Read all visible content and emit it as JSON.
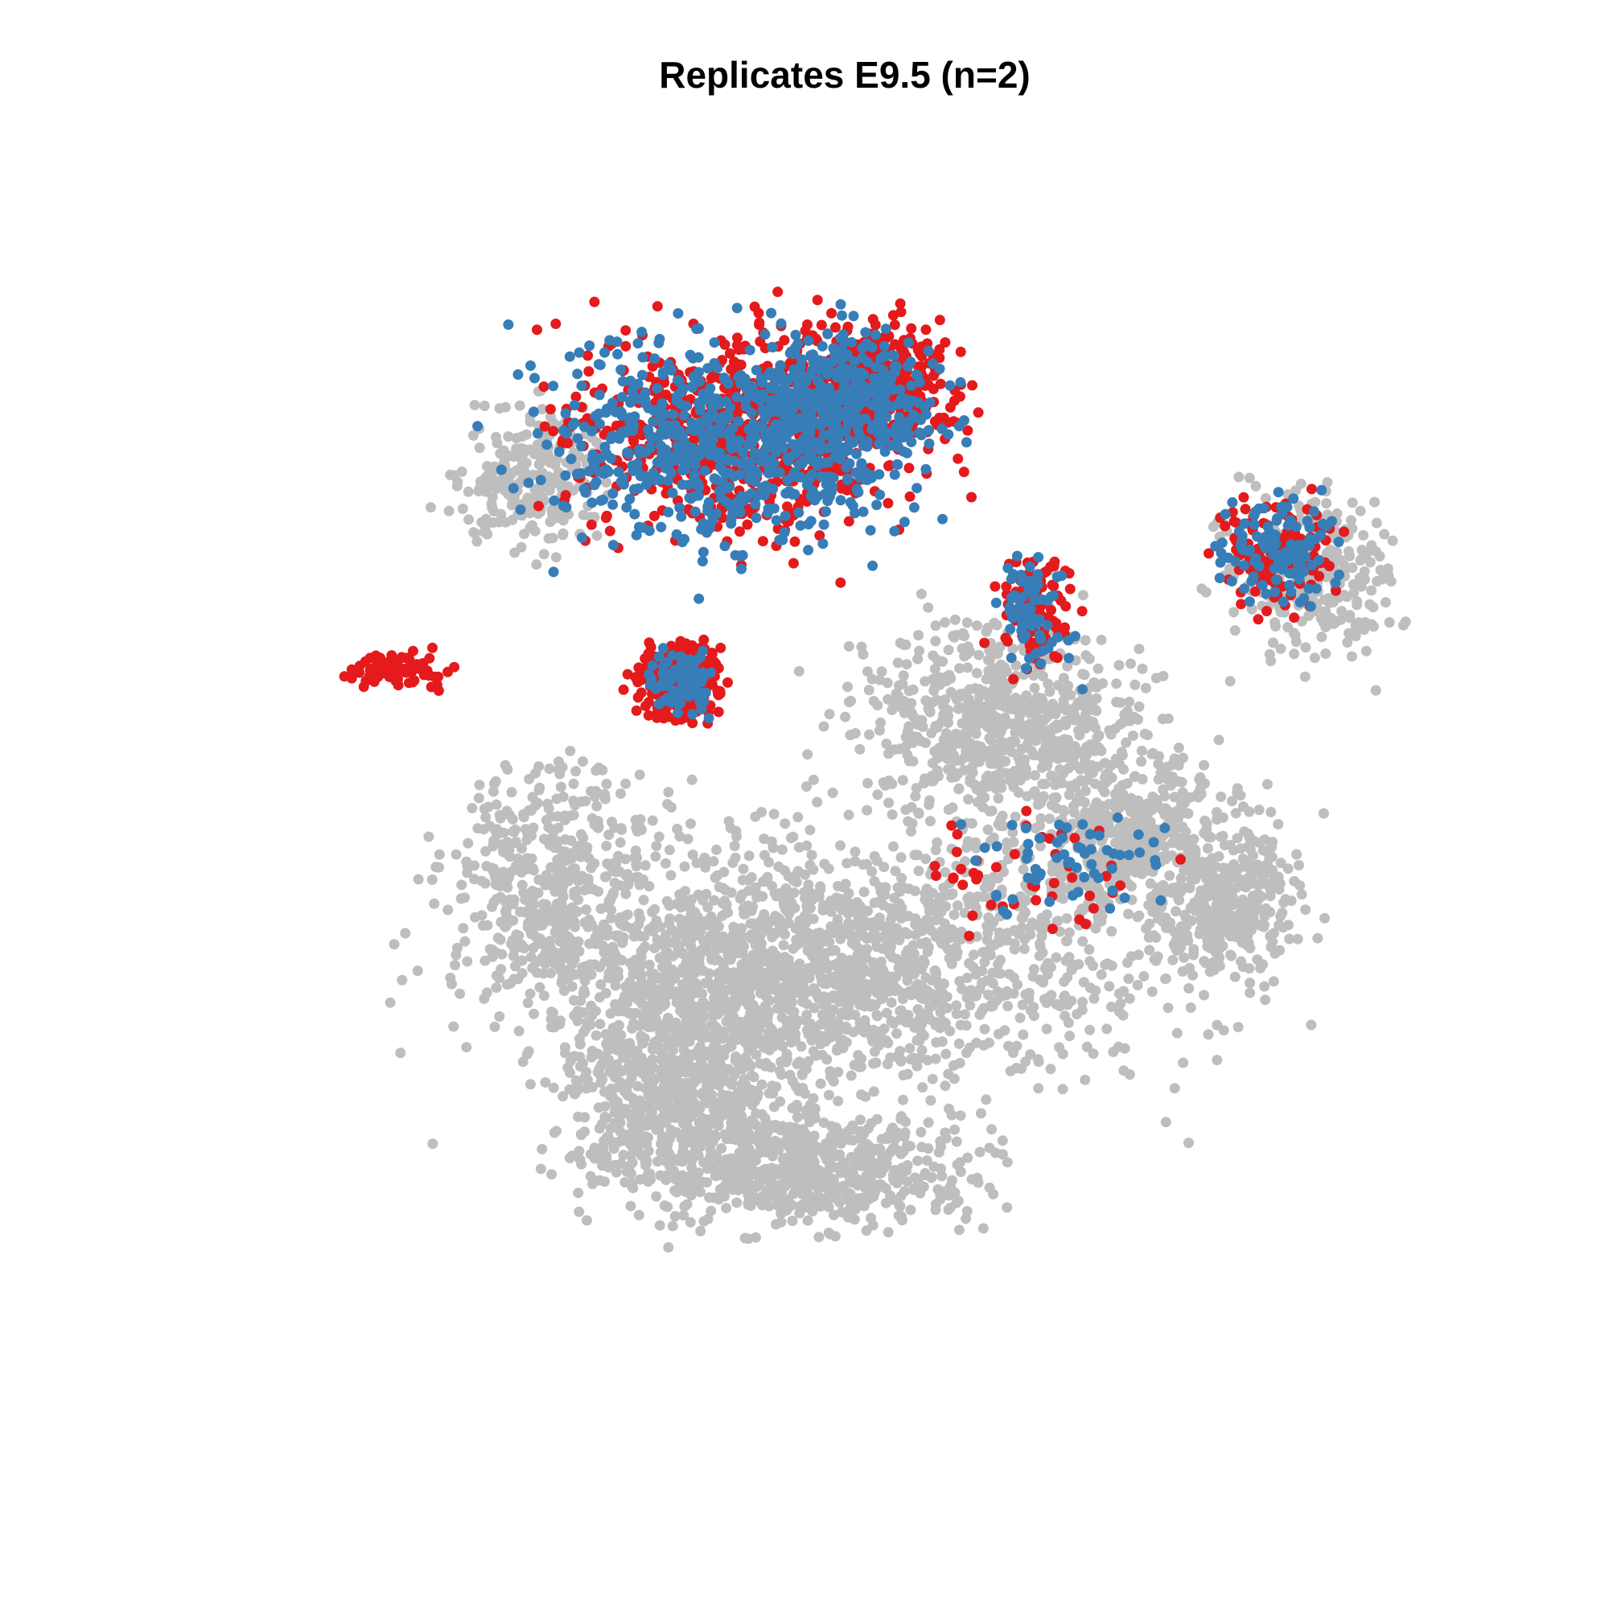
{
  "chart_data": {
    "type": "scatter",
    "title": "Replicates E9.5 (n=2)",
    "xlabel": "",
    "ylabel": "",
    "axes_visible": false,
    "grid": false,
    "legend": "none",
    "xlim": [
      0,
      100
    ],
    "ylim": [
      0,
      100
    ],
    "series": [
      {
        "role": "background",
        "color": "#bebebe",
        "clusters": [
          {
            "cx": 50,
            "cy": 36,
            "rx": 30,
            "ry": 12,
            "n": 1400
          },
          {
            "cx": 43,
            "cy": 33,
            "rx": 15,
            "ry": 9,
            "n": 500
          },
          {
            "cx": 37,
            "cy": 24,
            "rx": 10,
            "ry": 10,
            "n": 700
          },
          {
            "cx": 48,
            "cy": 18,
            "rx": 14,
            "ry": 5,
            "n": 600
          },
          {
            "cx": 62,
            "cy": 56,
            "rx": 12,
            "ry": 9,
            "n": 650
          },
          {
            "cx": 73,
            "cy": 46,
            "rx": 10,
            "ry": 8,
            "n": 500
          },
          {
            "cx": 80,
            "cy": 40,
            "rx": 6,
            "ry": 7,
            "n": 300
          },
          {
            "cx": 27,
            "cy": 42,
            "rx": 8,
            "ry": 10,
            "n": 400
          },
          {
            "cx": 87,
            "cy": 68,
            "rx": 7,
            "ry": 8,
            "n": 300
          },
          {
            "cx": 25,
            "cy": 76,
            "rx": 6,
            "ry": 6,
            "n": 250
          }
        ]
      },
      {
        "role": "replicate",
        "color": "#e41a1c",
        "clusters": [
          {
            "cx": 42,
            "cy": 80,
            "rx": 15,
            "ry": 9,
            "n": 750
          },
          {
            "cx": 52,
            "cy": 84,
            "rx": 7,
            "ry": 6,
            "n": 300
          },
          {
            "cx": 37,
            "cy": 59,
            "rx": 3.7,
            "ry": 3.6,
            "n": 320
          },
          {
            "cx": 15,
            "cy": 60,
            "rx": 4,
            "ry": 1.5,
            "n": 80
          },
          {
            "cx": 84,
            "cy": 70,
            "rx": 5,
            "ry": 5,
            "n": 120
          },
          {
            "cx": 65,
            "cy": 65,
            "rx": 3,
            "ry": 5,
            "n": 100
          },
          {
            "cx": 64,
            "cy": 43,
            "rx": 10,
            "ry": 5,
            "n": 45
          }
        ]
      },
      {
        "role": "replicate",
        "color": "#377eb8",
        "clusters": [
          {
            "cx": 41,
            "cy": 79,
            "rx": 15,
            "ry": 9,
            "n": 700
          },
          {
            "cx": 51,
            "cy": 83,
            "rx": 7,
            "ry": 6,
            "n": 250
          },
          {
            "cx": 37,
            "cy": 59,
            "rx": 3,
            "ry": 3,
            "n": 90
          },
          {
            "cx": 84,
            "cy": 70,
            "rx": 5,
            "ry": 5,
            "n": 110
          },
          {
            "cx": 68,
            "cy": 44,
            "rx": 8,
            "ry": 5,
            "n": 60
          },
          {
            "cx": 65,
            "cy": 65,
            "rx": 3,
            "ry": 5,
            "n": 70
          }
        ]
      }
    ]
  }
}
